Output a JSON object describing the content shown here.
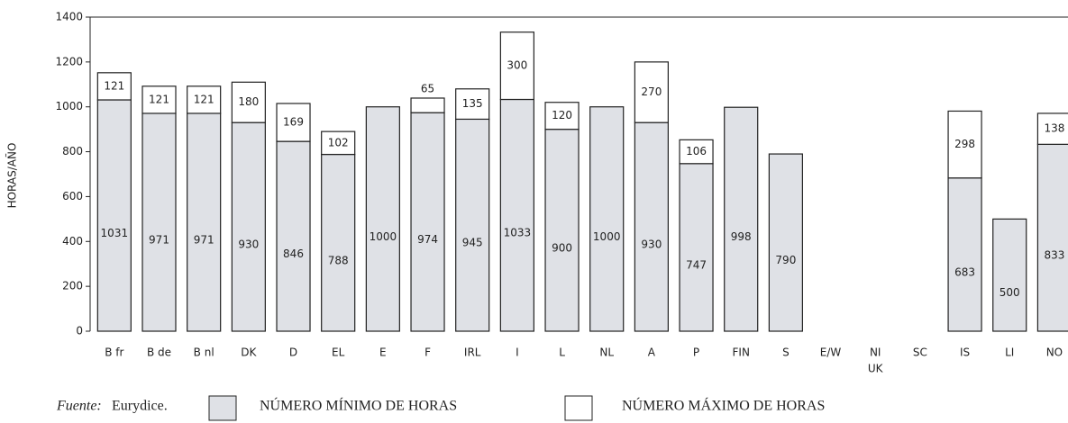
{
  "chart_data": {
    "type": "stacked_bar",
    "y_label": "HORAS/AÑO",
    "categories": [
      "B fr",
      "B de",
      "B nl",
      "DK",
      "D",
      "EL",
      "E",
      "F",
      "IRL",
      "I",
      "L",
      "NL",
      "A",
      "P",
      "FIN",
      "S",
      "E/W",
      "NI",
      "SC",
      "IS",
      "LI",
      "NO"
    ],
    "x_group_label": "UK",
    "series": [
      {
        "name": "NÚMERO MÍNIMO DE HORAS",
        "color": "#dfe1e6",
        "values": [
          1031,
          971,
          971,
          930,
          846,
          788,
          1000,
          974,
          945,
          1033,
          900,
          1000,
          930,
          747,
          998,
          790,
          null,
          null,
          null,
          683,
          500,
          833
        ]
      },
      {
        "name": "NÚMERO MÁXIMO DE HORAS",
        "color": "#ffffff",
        "values": [
          121,
          121,
          121,
          180,
          169,
          102,
          null,
          65,
          135,
          300,
          120,
          null,
          270,
          106,
          null,
          null,
          null,
          null,
          null,
          298,
          null,
          138
        ]
      }
    ],
    "ylim": [
      0,
      1400
    ],
    "yticks": [
      0,
      200,
      400,
      600,
      800,
      1000,
      1200,
      1400
    ],
    "source_label": "Fuente:",
    "source": "Eurydice."
  }
}
